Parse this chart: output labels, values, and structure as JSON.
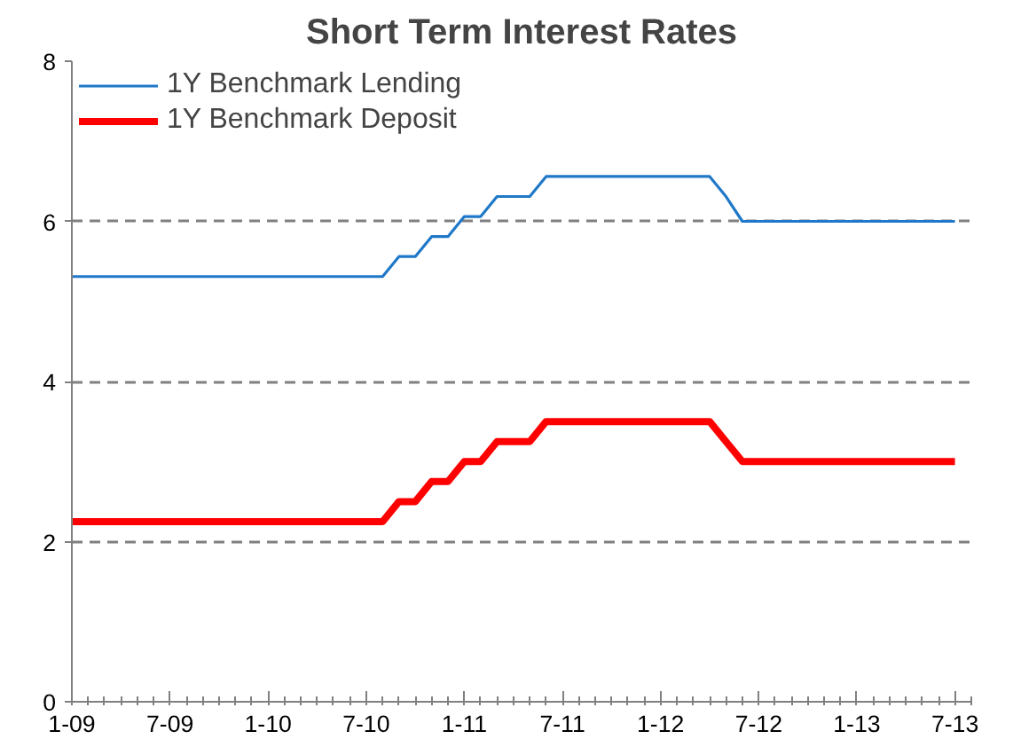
{
  "chart_data": {
    "type": "line",
    "title": "Short Term Interest Rates",
    "categories": [
      "1-09",
      null,
      null,
      null,
      null,
      null,
      "7-09",
      null,
      null,
      null,
      null,
      null,
      "1-10",
      null,
      null,
      null,
      null,
      null,
      "7-10",
      null,
      null,
      null,
      null,
      null,
      "1-11",
      null,
      null,
      null,
      null,
      null,
      "7-11",
      null,
      null,
      null,
      null,
      null,
      "1-12",
      null,
      null,
      null,
      null,
      null,
      "7-12",
      null,
      null,
      null,
      null,
      null,
      "1-13",
      null,
      null,
      null,
      null,
      null,
      "7-13"
    ],
    "series": [
      {
        "name": "1Y Benchmark Lending",
        "color": "#1f78c8",
        "values": [
          5.31,
          5.31,
          5.31,
          5.31,
          5.31,
          5.31,
          5.31,
          5.31,
          5.31,
          5.31,
          5.31,
          5.31,
          5.31,
          5.31,
          5.31,
          5.31,
          5.31,
          5.31,
          5.31,
          5.31,
          5.56,
          5.56,
          5.81,
          5.81,
          6.06,
          6.06,
          6.31,
          6.31,
          6.31,
          6.56,
          6.56,
          6.56,
          6.56,
          6.56,
          6.56,
          6.56,
          6.56,
          6.56,
          6.56,
          6.56,
          6.31,
          6.0,
          6.0,
          6.0,
          6.0,
          6.0,
          6.0,
          6.0,
          6.0,
          6.0,
          6.0,
          6.0,
          6.0,
          6.0,
          6.0
        ]
      },
      {
        "name": "1Y Benchmark Deposit",
        "color": "#ff0000",
        "values": [
          2.25,
          2.25,
          2.25,
          2.25,
          2.25,
          2.25,
          2.25,
          2.25,
          2.25,
          2.25,
          2.25,
          2.25,
          2.25,
          2.25,
          2.25,
          2.25,
          2.25,
          2.25,
          2.25,
          2.25,
          2.5,
          2.5,
          2.75,
          2.75,
          3.0,
          3.0,
          3.25,
          3.25,
          3.25,
          3.5,
          3.5,
          3.5,
          3.5,
          3.5,
          3.5,
          3.5,
          3.5,
          3.5,
          3.5,
          3.5,
          3.25,
          3.0,
          3.0,
          3.0,
          3.0,
          3.0,
          3.0,
          3.0,
          3.0,
          3.0,
          3.0,
          3.0,
          3.0,
          3.0,
          3.0
        ]
      }
    ],
    "ylim": [
      0,
      8
    ],
    "yticks": [
      0,
      2,
      4,
      6,
      8
    ],
    "grid": "y",
    "legend": "top left",
    "marker": "none",
    "line_style": "solid"
  }
}
